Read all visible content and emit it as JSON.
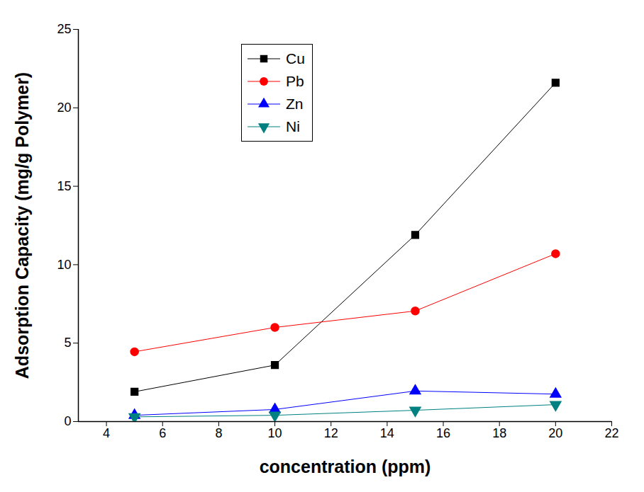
{
  "chart_data": {
    "type": "line",
    "x_label": "concentration (ppm)",
    "y_label": "Adsorption Capacity (mg/g Polymer)",
    "x": [
      5,
      10,
      15,
      20
    ],
    "series": [
      {
        "name": "Cu",
        "color": "#000000",
        "marker": "square",
        "values": [
          1.9,
          3.6,
          11.9,
          21.6
        ]
      },
      {
        "name": "Pb",
        "color": "#ff0000",
        "marker": "circle",
        "values": [
          4.45,
          6.0,
          7.05,
          10.7
        ]
      },
      {
        "name": "Zn",
        "color": "#0000ff",
        "marker": "triangle",
        "values": [
          0.4,
          0.77,
          1.95,
          1.75
        ]
      },
      {
        "name": "Ni",
        "color": "#008080",
        "marker": "triangle-down",
        "values": [
          0.3,
          0.4,
          0.72,
          1.08
        ]
      }
    ],
    "xlim": [
      3,
      22
    ],
    "xticks": [
      4,
      6,
      8,
      10,
      12,
      14,
      16,
      18,
      20,
      22
    ],
    "ylim": [
      0,
      25
    ],
    "yticks": [
      0,
      5,
      10,
      15,
      20,
      25
    ],
    "grid": false,
    "legend": "upper left"
  }
}
